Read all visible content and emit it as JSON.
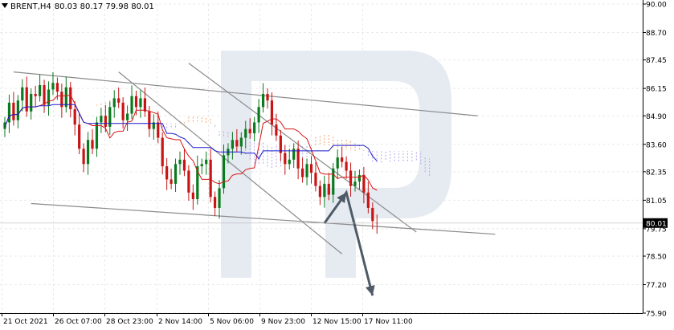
{
  "header": {
    "symbol": "BRENT,H4",
    "ohlc": "80.03 80.17 79.98 80.01"
  },
  "colors": {
    "bull": "#0a7a1f",
    "bear": "#c81414",
    "tenkan": "#d81414",
    "kijun": "#1a1acc",
    "cloud_a": "#f3a46d",
    "cloud_b": "#b4a6e6",
    "channel": "#8a8a8a",
    "arrow": "#4e5b66",
    "watermark": "#e6ebf2",
    "price_label_bg": "#000000"
  },
  "chart_data": {
    "type": "candlestick",
    "ylim": [
      75.9,
      90.0
    ],
    "y_ticks": [
      "90.00",
      "88.70",
      "87.45",
      "86.15",
      "84.90",
      "83.60",
      "82.35",
      "81.05",
      "79.75",
      "78.50",
      "77.20",
      "75.90"
    ],
    "x_ticks": [
      "21 Oct 2021",
      "26 Oct 07:00",
      "28 Oct 23:00",
      "2 Nov 14:00",
      "5 Nov 06:00",
      "9 Nov 23:00",
      "12 Nov 15:00",
      "17 Nov 11:00"
    ],
    "current_price_label": "80.01",
    "current_price": 80.01,
    "closes": [
      84.6,
      85.5,
      84.7,
      85.6,
      86.2,
      85.1,
      85.9,
      85.8,
      86.3,
      85.4,
      86.1,
      86.4,
      86.0,
      85.3,
      86.2,
      85.2,
      84.5,
      83.4,
      82.7,
      83.8,
      83.4,
      84.6,
      84.9,
      84.4,
      85.3,
      85.7,
      85.5,
      84.7,
      85.0,
      85.8,
      85.3,
      85.7,
      85.1,
      84.3,
      84.6,
      83.9,
      82.6,
      82.0,
      81.8,
      82.7,
      82.9,
      82.4,
      81.4,
      81.1,
      82.6,
      82.7,
      82.9,
      81.2,
      80.7,
      81.6,
      83.1,
      83.4,
      83.8,
      83.5,
      83.9,
      84.3,
      84.1,
      84.6,
      85.3,
      85.9,
      85.6,
      84.5,
      84.0,
      83.2,
      82.7,
      82.9,
      83.4,
      82.5,
      82.1,
      82.7,
      82.3,
      81.7,
      81.2,
      81.8,
      81.3,
      82.5,
      83.0,
      82.8,
      82.4,
      81.7,
      81.9,
      82.2,
      81.4,
      80.7,
      80.1,
      80.01
    ],
    "opens": [
      84.3,
      84.6,
      85.5,
      84.7,
      85.6,
      86.2,
      85.1,
      85.9,
      85.8,
      86.3,
      85.4,
      86.1,
      86.4,
      86.0,
      85.3,
      86.2,
      85.2,
      84.5,
      83.4,
      82.7,
      83.8,
      83.4,
      84.6,
      84.9,
      84.4,
      85.3,
      85.7,
      85.5,
      84.7,
      85.0,
      85.8,
      85.3,
      85.7,
      85.1,
      84.3,
      84.6,
      83.9,
      82.6,
      82.0,
      81.8,
      82.7,
      82.9,
      82.4,
      81.4,
      81.1,
      82.6,
      82.7,
      82.9,
      81.2,
      80.7,
      81.6,
      83.1,
      83.4,
      83.8,
      83.5,
      83.9,
      84.3,
      84.1,
      84.6,
      85.3,
      85.9,
      85.6,
      84.5,
      84.0,
      83.2,
      82.7,
      82.9,
      83.4,
      82.5,
      82.1,
      82.7,
      82.3,
      81.7,
      81.2,
      81.8,
      81.3,
      82.5,
      83.0,
      82.8,
      82.4,
      81.7,
      81.9,
      82.2,
      81.4,
      80.7,
      80.03
    ],
    "channels": [
      {
        "name": "upper-channel-line",
        "from": {
          "bar": 2,
          "price": 86.9
        },
        "to": {
          "bar": 108,
          "price": 84.9
        }
      },
      {
        "name": "lower-channel-line",
        "from": {
          "bar": 6,
          "price": 80.9
        },
        "to": {
          "bar": 112,
          "price": 79.5
        }
      },
      {
        "name": "falling-channel-top",
        "from": {
          "bar": 42,
          "price": 87.3
        },
        "to": {
          "bar": 94,
          "price": 79.6
        }
      },
      {
        "name": "falling-channel-bottom",
        "from": {
          "bar": 26,
          "price": 86.9
        },
        "to": {
          "bar": 77,
          "price": 78.6
        }
      }
    ],
    "forecast_path": [
      {
        "bar": 73,
        "price": 80.0
      },
      {
        "bar": 78,
        "price": 81.4
      },
      {
        "bar": 84,
        "price": 76.7
      }
    ]
  }
}
